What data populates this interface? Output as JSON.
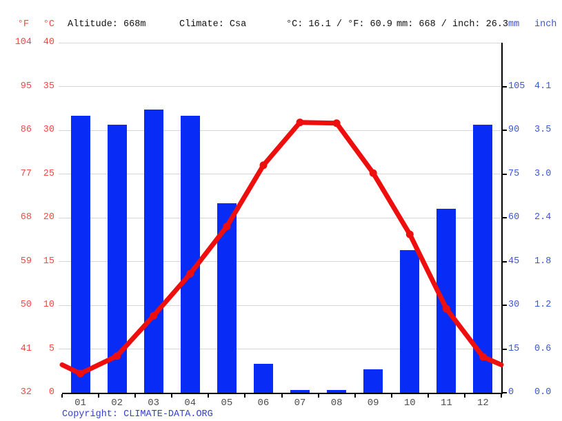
{
  "header": {
    "f_label": "°F",
    "c_label": "°C",
    "altitude": "Altitude: 668m",
    "climate": "Climate: Csa",
    "avg_temp": "°C: 16.1 / °F: 60.9",
    "precip_total": "mm: 668 / inch: 26.3",
    "mm_label": "mm",
    "inch_label": "inch"
  },
  "axes": {
    "fahrenheit_ticks": [
      "104",
      "95",
      "86",
      "77",
      "68",
      "59",
      "50",
      "41",
      "32"
    ],
    "celsius_ticks": [
      "40",
      "35",
      "30",
      "25",
      "20",
      "15",
      "10",
      "5",
      "0"
    ],
    "mm_ticks": [
      "105",
      "90",
      "75",
      "60",
      "45",
      "30",
      "15",
      "0"
    ],
    "inch_ticks": [
      "4.1",
      "3.5",
      "3.0",
      "2.4",
      "1.8",
      "1.2",
      "0.6",
      "0.0"
    ]
  },
  "chart_data": {
    "type": "bar",
    "title": "Climate graph",
    "categories": [
      "01",
      "02",
      "03",
      "04",
      "05",
      "06",
      "07",
      "08",
      "09",
      "10",
      "11",
      "12"
    ],
    "series": [
      {
        "name": "precipitation",
        "type": "bar",
        "unit": "mm",
        "color": "#082cf5",
        "values": [
          95,
          92,
          97,
          95,
          65,
          10,
          1,
          1,
          8,
          49,
          63,
          92
        ]
      },
      {
        "name": "temperature",
        "type": "line",
        "unit": "°C",
        "color": "#ee0e0e",
        "values": [
          2.2,
          4.2,
          8.8,
          13.6,
          19.0,
          26.0,
          30.9,
          30.8,
          25.1,
          18.1,
          9.6,
          4.1
        ]
      }
    ],
    "edge_value_c": 3.2,
    "y_axis_left": {
      "units": [
        "°F",
        "°C"
      ],
      "c_min": 0,
      "c_max": 40
    },
    "y_axis_right": {
      "units": [
        "mm",
        "inch"
      ],
      "mm_min": 0,
      "mm_max": 120
    },
    "grid": "horizontal",
    "legend": "none"
  },
  "colors": {
    "bar_blue": "#082cf5",
    "line_red": "#ee0e0e",
    "left_axis_text": "#fa4646",
    "right_axis_text": "#3d55dc",
    "month_text": "#4d4d4d",
    "gridline": "#d6d6d6"
  },
  "footer": {
    "copyright_prefix": "Copyright: ",
    "link": "CLIMATE-DATA.ORG"
  }
}
